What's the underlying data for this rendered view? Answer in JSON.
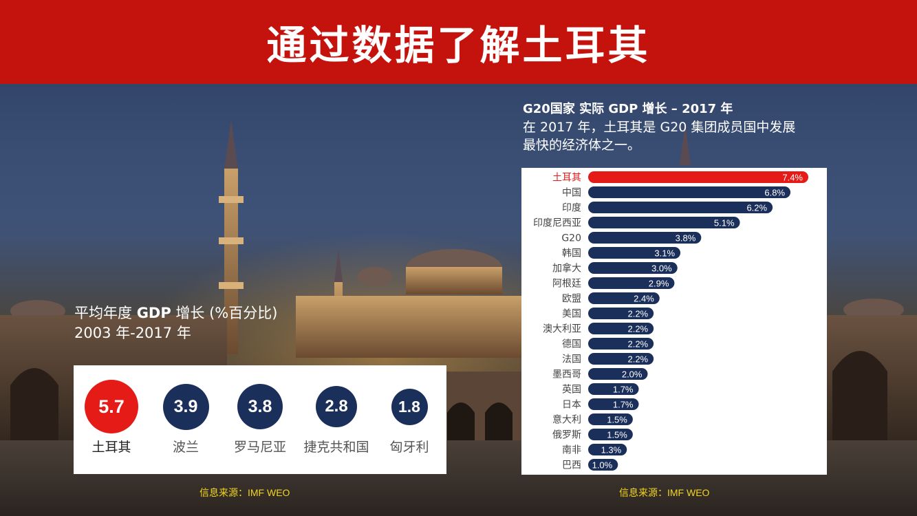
{
  "header": {
    "title": "通过数据了解土耳其"
  },
  "left": {
    "title_bold_prefix": "平均年度 ",
    "title_bold": "GDP",
    "title_rest": " 增长 (%百分比)",
    "subtitle": "2003 年-2017 年",
    "source": "信息来源：IMF WEO",
    "highlight_color": "#e41b17",
    "base_color": "#1b2f5b"
  },
  "right": {
    "title": "G20国家 实际 GDP 增长 – 2017 年",
    "desc_line1": "在 2017 年，土耳其是 G20 集团成员国中发展",
    "desc_line2": "最快的经济体之一。",
    "source": "信息来源：IMF WEO",
    "highlight_color": "#e41b17",
    "base_color": "#1b2f5b"
  },
  "chart_data": [
    {
      "type": "bar",
      "orientation": "bubbles",
      "categories": [
        "土耳其",
        "波兰",
        "罗马尼亚",
        "捷克共和国",
        "匈牙利"
      ],
      "values": [
        5.7,
        3.9,
        3.8,
        2.8,
        1.8
      ],
      "title": "平均年度 GDP 增长 (%百分比)",
      "subtitle": "2003 年-2017 年",
      "highlight": "土耳其"
    },
    {
      "type": "bar",
      "orientation": "horizontal",
      "categories": [
        "土耳其",
        "中国",
        "印度",
        "印度尼西亚",
        "G20",
        "韩国",
        "加拿大",
        "阿根廷",
        "欧盟",
        "美国",
        "澳大利亚",
        "德国",
        "法国",
        "墨西哥",
        "英国",
        "日本",
        "意大利",
        "俄罗斯",
        "南非",
        "巴西"
      ],
      "values": [
        7.4,
        6.8,
        6.2,
        5.1,
        3.8,
        3.1,
        3.0,
        2.9,
        2.4,
        2.2,
        2.2,
        2.2,
        2.2,
        2.0,
        1.7,
        1.7,
        1.5,
        1.5,
        1.3,
        1.0
      ],
      "labels": [
        "7.4%",
        "6.8%",
        "6.2%",
        "5.1%",
        "3.8%",
        "3.1%",
        "3.0%",
        "2.9%",
        "2.4%",
        "2.2%",
        "2.2%",
        "2.2%",
        "2.2%",
        "2.0%",
        "1.7%",
        "1.7%",
        "1.5%",
        "1.5%",
        "1.3%",
        "1.0%"
      ],
      "title": "G20国家 实际 GDP 增长 – 2017 年",
      "highlight": "土耳其",
      "xlim": [
        0,
        7.4
      ]
    }
  ]
}
